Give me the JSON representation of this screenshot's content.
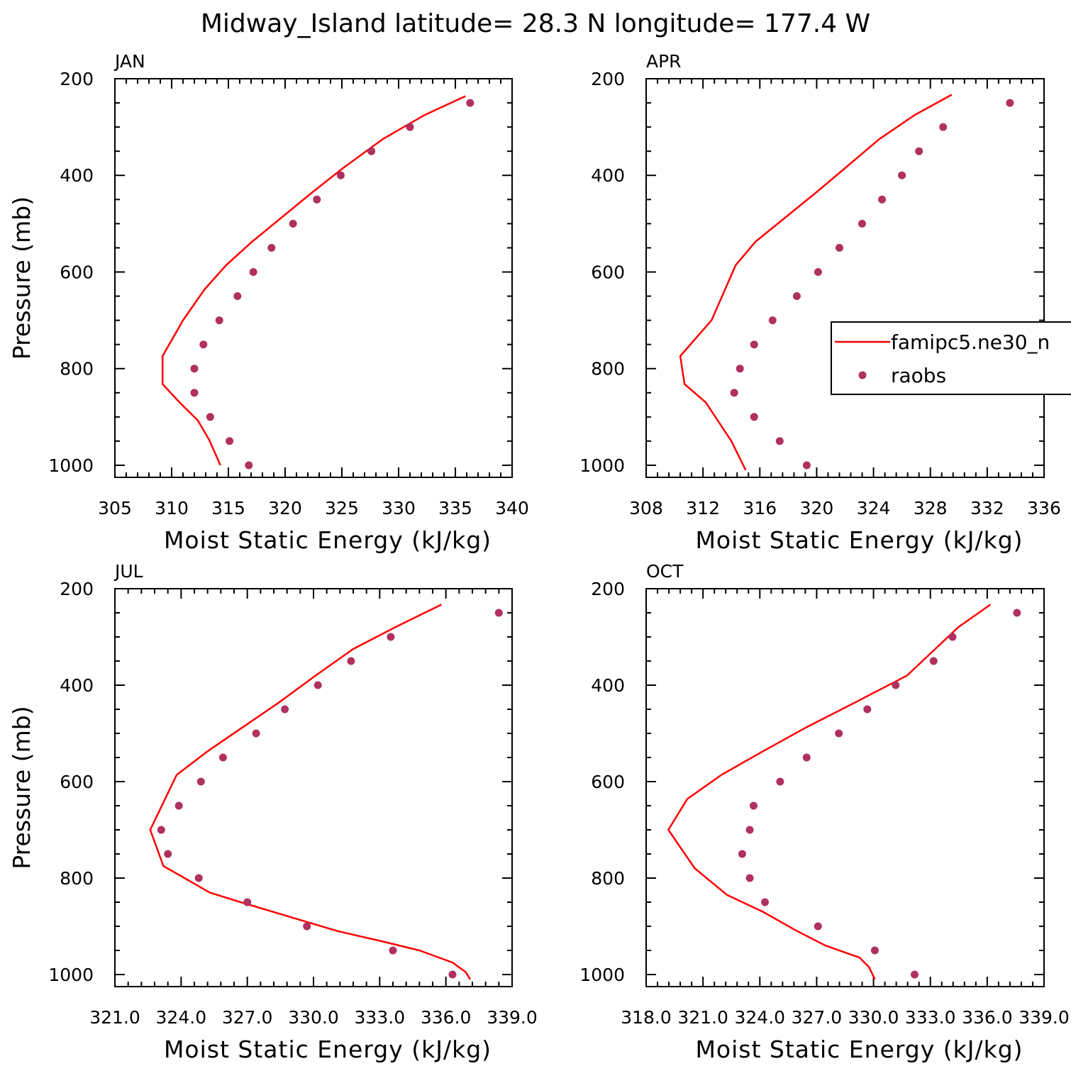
{
  "title": "Midway_Island  latitude= 28.3 N longitude= 177.4 W",
  "xlabel": "Moist Static Energy (kJ/kg)",
  "ylabel": "Pressure (mb)",
  "colors": {
    "model": "#ff0000",
    "obs": "#b03060"
  },
  "legend": {
    "model": "famipc5.ne30_n",
    "obs": "raobs"
  },
  "chart_data": [
    {
      "type": "line",
      "panel": "JAN",
      "xlim": [
        305,
        340
      ],
      "xticks": [
        "305",
        "310",
        "315",
        "320",
        "325",
        "330",
        "335",
        "340"
      ],
      "ylim": [
        1000,
        200
      ],
      "yticks": [
        "200",
        "400",
        "600",
        "800",
        "1000"
      ],
      "series": [
        {
          "name": "famipc5.ne30_n",
          "x": [
            335.9,
            332.3,
            328.6,
            325.1,
            322.3,
            319.7,
            317.1,
            314.8,
            312.9,
            311.0,
            309.2,
            309.2,
            310.7,
            312.3,
            313.3,
            314.3
          ],
          "y": [
            236,
            275,
            325,
            385,
            437,
            487,
            537,
            586,
            636,
            700,
            774,
            832,
            870,
            907,
            947,
            1000
          ]
        },
        {
          "name": "raobs",
          "x": [
            336.3,
            331.0,
            327.6,
            324.9,
            322.8,
            320.7,
            318.8,
            317.2,
            315.8,
            314.2,
            312.8,
            312.0,
            312.0,
            313.4,
            315.1,
            316.8
          ],
          "y": [
            250,
            300,
            350,
            400,
            450,
            500,
            550,
            600,
            650,
            700,
            750,
            800,
            850,
            900,
            950,
            1000
          ]
        }
      ]
    },
    {
      "type": "line",
      "panel": "APR",
      "xlim": [
        308,
        336
      ],
      "xticks": [
        "308",
        "312",
        "316",
        "320",
        "324",
        "328",
        "332",
        "336"
      ],
      "ylim": [
        1000,
        200
      ],
      "yticks": [
        "200",
        "400",
        "600",
        "800",
        "1000"
      ],
      "series": [
        {
          "name": "famipc5.ne30_n",
          "x": [
            329.5,
            326.9,
            324.4,
            322.0,
            319.9,
            317.8,
            315.7,
            314.3,
            312.6,
            310.4,
            310.7,
            312.2,
            314.0,
            315.0
          ],
          "y": [
            233,
            275,
            325,
            385,
            437,
            487,
            537,
            586,
            700,
            774,
            832,
            870,
            950,
            1010
          ]
        },
        {
          "name": "raobs",
          "x": [
            333.6,
            328.9,
            327.2,
            326.0,
            324.6,
            323.2,
            321.6,
            320.1,
            318.6,
            316.9,
            315.6,
            314.6,
            314.2,
            315.6,
            317.4,
            319.3
          ],
          "y": [
            250,
            300,
            350,
            400,
            450,
            500,
            550,
            600,
            650,
            700,
            750,
            800,
            850,
            900,
            950,
            1000
          ]
        }
      ]
    },
    {
      "type": "line",
      "panel": "JUL",
      "xlim": [
        321,
        339
      ],
      "xticks": [
        "321.0",
        "324.0",
        "327.0",
        "330.0",
        "333.0",
        "336.0",
        "339.0"
      ],
      "ylim": [
        1000,
        200
      ],
      "yticks": [
        "200",
        "400",
        "600",
        "800",
        "1000"
      ],
      "series": [
        {
          "name": "famipc5.ne30_n",
          "x": [
            335.8,
            333.7,
            331.8,
            330.1,
            328.4,
            326.8,
            325.2,
            323.8,
            322.6,
            323.2,
            325.3,
            326.7,
            328.9,
            331.1,
            333.0,
            334.8,
            336.3,
            336.9,
            337.1
          ],
          "y": [
            233,
            280,
            325,
            380,
            437,
            487,
            537,
            586,
            700,
            775,
            830,
            850,
            880,
            910,
            930,
            950,
            975,
            995,
            1010
          ]
        },
        {
          "name": "raobs",
          "x": [
            338.4,
            333.5,
            331.7,
            330.2,
            328.7,
            327.4,
            325.9,
            324.9,
            323.9,
            323.1,
            323.4,
            324.8,
            327.0,
            329.7,
            333.6,
            336.3
          ],
          "y": [
            250,
            300,
            350,
            400,
            450,
            500,
            550,
            600,
            650,
            700,
            750,
            800,
            850,
            900,
            950,
            1000
          ]
        }
      ]
    },
    {
      "type": "line",
      "panel": "OCT",
      "xlim": [
        318.03,
        339.03
      ],
      "xticks": [
        "318.0",
        "321.0",
        "324.0",
        "327.0",
        "330.0",
        "333.0",
        "336.0",
        "339.0"
      ],
      "ylim": [
        1000,
        200
      ],
      "yticks": [
        "200",
        "400",
        "600",
        "800",
        "1000"
      ],
      "series": [
        {
          "name": "famipc5.ne30_n",
          "x": [
            336.2,
            334.5,
            331.8,
            329.0,
            326.5,
            324.2,
            322.0,
            320.2,
            319.2,
            320.6,
            322.3,
            324.2,
            326.0,
            327.5,
            329.3,
            329.8,
            330.1
          ],
          "y": [
            233,
            280,
            380,
            437,
            487,
            537,
            586,
            636,
            700,
            780,
            835,
            870,
            910,
            940,
            965,
            985,
            1010
          ]
        },
        {
          "name": "raobs",
          "x": [
            337.6,
            334.2,
            333.2,
            331.2,
            329.7,
            328.2,
            326.5,
            325.1,
            323.7,
            323.5,
            323.1,
            323.5,
            324.3,
            327.1,
            330.1,
            332.2
          ],
          "y": [
            250,
            300,
            350,
            400,
            450,
            500,
            550,
            600,
            650,
            700,
            750,
            800,
            850,
            900,
            950,
            1000
          ]
        }
      ]
    }
  ]
}
